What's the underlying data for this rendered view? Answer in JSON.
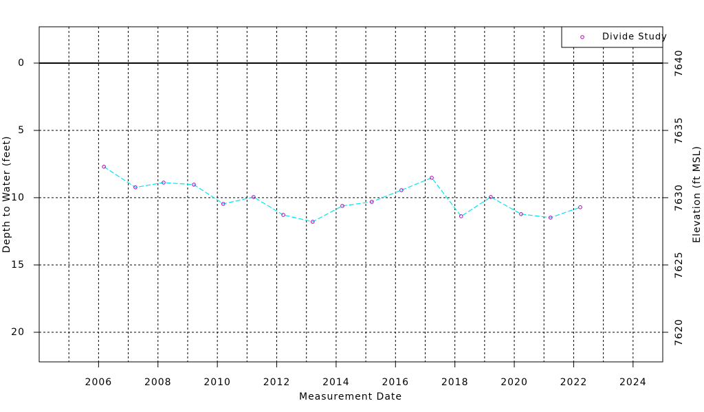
{
  "chart_data": {
    "type": "line",
    "x_label": "Measurement Date",
    "y_label": "Depth to Water (feet)",
    "y2_label": "Elevation (ft MSL)",
    "x": [
      2006.18,
      2007.24,
      2008.19,
      2009.21,
      2010.2,
      2011.22,
      2012.22,
      2013.21,
      2014.21,
      2015.2,
      2016.2,
      2017.22,
      2018.21,
      2019.21,
      2020.23,
      2021.22,
      2022.22
    ],
    "series": [
      {
        "name": "Divide Study",
        "color": "#00e5ee",
        "marker_color": "#b000b0",
        "values": [
          7.7,
          9.23,
          8.88,
          9.03,
          10.46,
          9.95,
          11.28,
          11.79,
          10.61,
          10.31,
          9.44,
          8.52,
          11.38,
          9.95,
          11.22,
          11.48,
          10.71
        ]
      }
    ],
    "xlim": [
      2004,
      2025
    ],
    "xticks": [
      2006,
      2008,
      2010,
      2012,
      2014,
      2016,
      2018,
      2020,
      2022,
      2024
    ],
    "x_minor_grid": [
      2005,
      2007,
      2009,
      2011,
      2013,
      2015,
      2017,
      2019,
      2021,
      2023
    ],
    "ylim": [
      22.2,
      -2.7
    ],
    "yticks": [
      0,
      5,
      10,
      15,
      20
    ],
    "y2lim": [
      7617.8,
      7642.7
    ],
    "y2ticks": [
      7620,
      7625,
      7630,
      7635,
      7640
    ],
    "reference_line": 0,
    "grid": true,
    "legend": "top-right"
  }
}
